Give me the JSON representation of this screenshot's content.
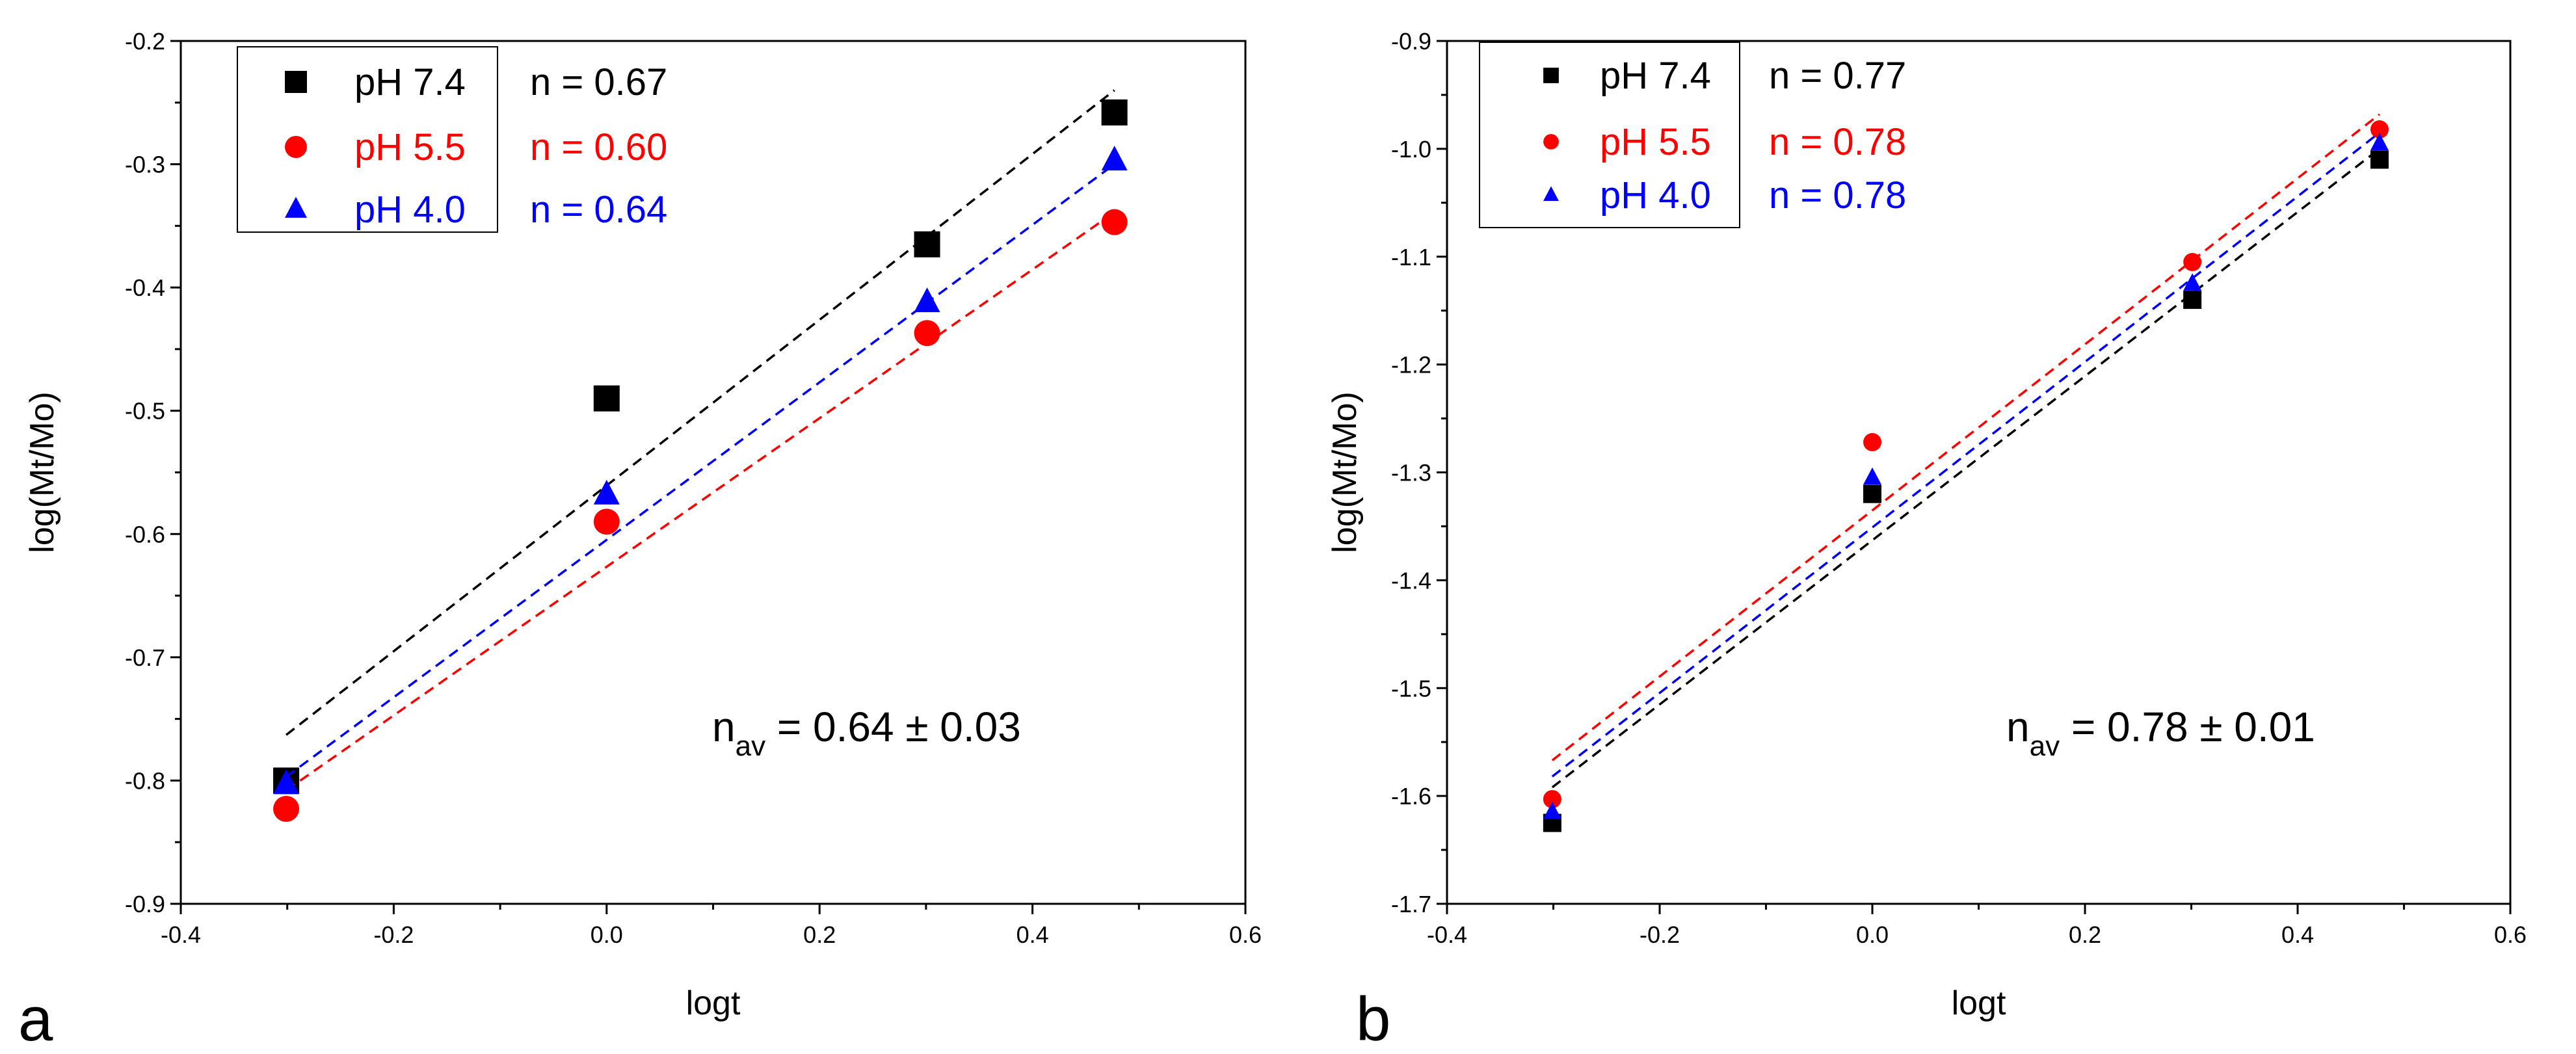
{
  "chart_data": [
    {
      "panel": "a",
      "type": "scatter",
      "title": "",
      "xlabel": "logt",
      "ylabel": "log(Mt/Mo)",
      "xlim": [
        -0.4,
        0.6
      ],
      "ylim": [
        -0.9,
        -0.2
      ],
      "xticks": [
        -0.4,
        -0.2,
        0.0,
        0.2,
        0.4,
        0.6
      ],
      "xtick_labels": [
        "-0.4",
        "-0.2",
        "0.0",
        "0.2",
        "0.4",
        "0.6"
      ],
      "yticks": [
        -0.9,
        -0.8,
        -0.7,
        -0.6,
        -0.5,
        -0.4,
        -0.3,
        -0.2
      ],
      "ytick_labels": [
        "-0.9",
        "-0.8",
        "-0.7",
        "-0.6",
        "-0.5",
        "-0.4",
        "-0.3",
        "-0.2"
      ],
      "x": [
        -0.301,
        0.0,
        0.301,
        0.477
      ],
      "series": [
        {
          "name": "pH 7.4",
          "marker": "square",
          "color": "#000000",
          "values": [
            -0.8,
            -0.49,
            -0.365,
            -0.258
          ],
          "fit": [
            -0.763,
            -0.24
          ],
          "fit_label": "n = 0.67"
        },
        {
          "name": "pH 5.5",
          "marker": "circle",
          "color": "#ff0000",
          "values": [
            -0.823,
            -0.59,
            -0.437,
            -0.347
          ],
          "fit": [
            -0.808,
            -0.339
          ],
          "fit_label": "n = 0.60"
        },
        {
          "name": "pH 4.0",
          "marker": "triangle",
          "color": "#0000ff",
          "values": [
            -0.803,
            -0.568,
            -0.412,
            -0.297
          ],
          "fit": [
            -0.797,
            -0.3
          ],
          "fit_label": "n = 0.64"
        }
      ],
      "annotation": {
        "prefix": "n",
        "subscript": "av",
        "value": " = 0.64 ± 0.03"
      }
    },
    {
      "panel": "b",
      "type": "scatter",
      "title": "",
      "xlabel": "logt",
      "ylabel": "log(Mt/Mo)",
      "xlim": [
        -0.4,
        0.6
      ],
      "ylim": [
        -1.7,
        -0.9
      ],
      "xticks": [
        -0.4,
        -0.2,
        0.0,
        0.2,
        0.4,
        0.6
      ],
      "xtick_labels": [
        "-0.4",
        "-0.2",
        "0.0",
        "0.2",
        "0.4",
        "0.6"
      ],
      "yticks": [
        -1.7,
        -1.6,
        -1.5,
        -1.4,
        -1.3,
        -1.2,
        -1.1,
        -1.0,
        -0.9
      ],
      "ytick_labels": [
        "-1.7",
        "-1.6",
        "-1.5",
        "-1.4",
        "-1.3",
        "-1.2",
        "-1.1",
        "-1.0",
        "-0.9"
      ],
      "x": [
        -0.301,
        0.0,
        0.301,
        0.477
      ],
      "series": [
        {
          "name": "pH 7.4",
          "marker": "square",
          "color": "#000000",
          "values": [
            -1.625,
            -1.32,
            -1.14,
            -1.01
          ],
          "fit": [
            -1.592,
            -1.0
          ],
          "fit_label": "n = 0.77"
        },
        {
          "name": "pH 5.5",
          "marker": "circle",
          "color": "#ff0000",
          "values": [
            -1.603,
            -1.272,
            -1.105,
            -0.982
          ],
          "fit": [
            -1.567,
            -0.968
          ],
          "fit_label": "n = 0.78"
        },
        {
          "name": "pH 4.0",
          "marker": "triangle",
          "color": "#0000ff",
          "values": [
            -1.615,
            -1.305,
            -1.125,
            -0.995
          ],
          "fit": [
            -1.582,
            -0.985
          ],
          "fit_label": "n = 0.78"
        }
      ],
      "annotation": {
        "prefix": "n",
        "subscript": "av",
        "value": " = 0.78 ± 0.01"
      }
    }
  ]
}
